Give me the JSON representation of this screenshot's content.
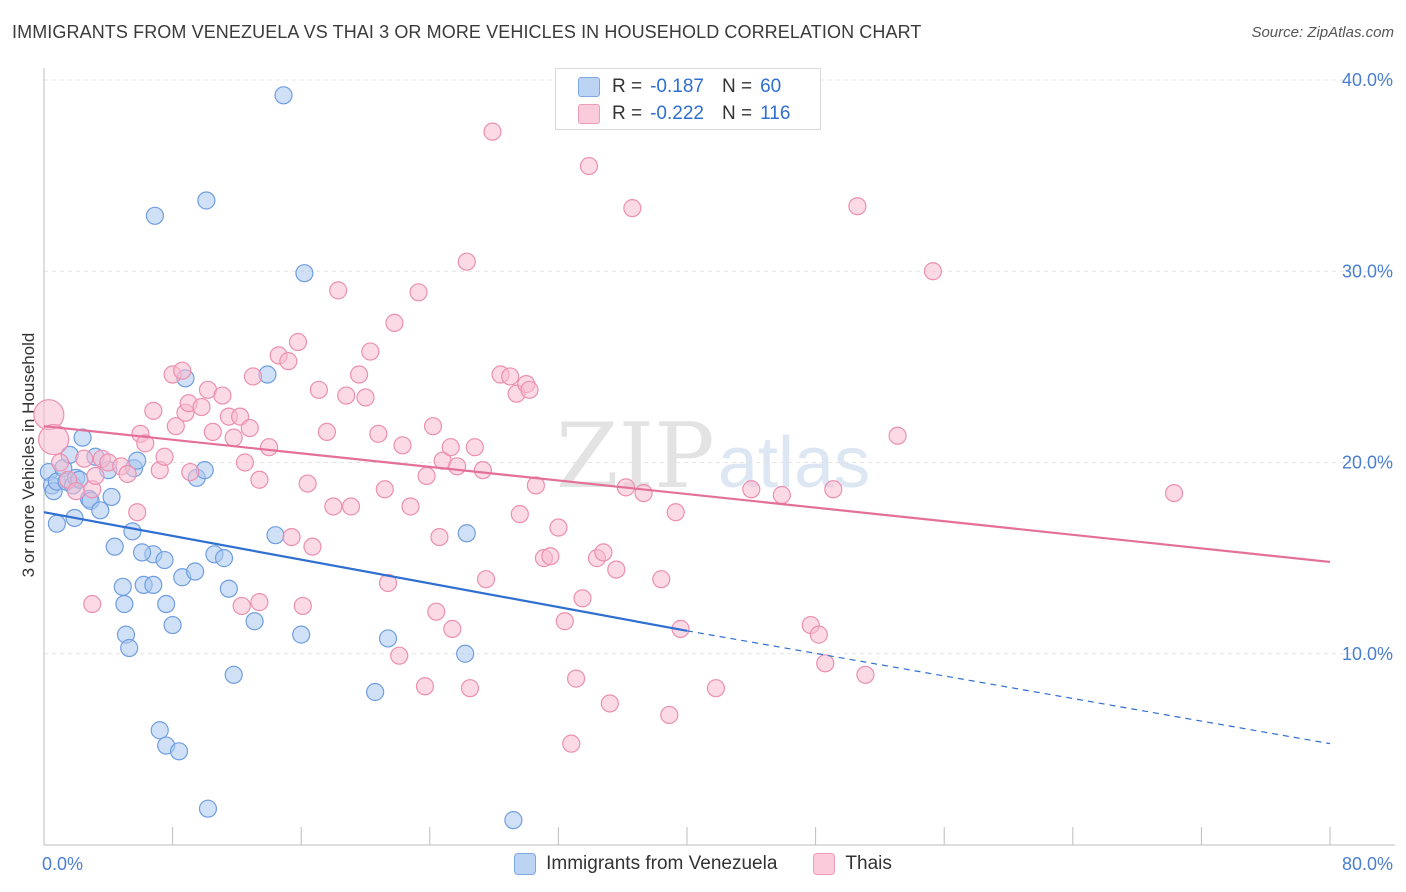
{
  "title": "IMMIGRANTS FROM VENEZUELA VS THAI 3 OR MORE VEHICLES IN HOUSEHOLD CORRELATION CHART",
  "source": "Source: ZipAtlas.com",
  "watermark": {
    "zip": "ZIP",
    "atlas": "atlas"
  },
  "colors": {
    "blue_fill": "#a9c8f0",
    "blue_stroke": "#6f9ee0",
    "blue_line": "#2f6fd0",
    "pink_fill": "#f7bcd0",
    "pink_stroke": "#ec8fb0",
    "pink_line": "#e46f98",
    "tick_text": "#4a7ed0"
  },
  "legend_top": [
    {
      "r_label": "R =",
      "r_value": "-0.187",
      "n_label": "N =",
      "n_value": "60"
    },
    {
      "r_label": "R =",
      "r_value": "-0.222",
      "n_label": "N =",
      "n_value": "116"
    }
  ],
  "legend_bottom": [
    "Immigrants from Venezuela",
    "Thais"
  ],
  "chart_data": {
    "type": "scatter",
    "title": "IMMIGRANTS FROM VENEZUELA VS THAI 3 OR MORE VEHICLES IN HOUSEHOLD CORRELATION CHART",
    "xlabel": "",
    "ylabel": "3 or more Vehicles in Household",
    "xlim": [
      0,
      80
    ],
    "ylim": [
      0,
      40
    ],
    "x_tick_labels": [
      "0.0%",
      "80.0%"
    ],
    "y_ticks": [
      10,
      20,
      30,
      40
    ],
    "y_tick_labels": [
      "10.0%",
      "20.0%",
      "30.0%",
      "40.0%"
    ],
    "grid": true,
    "series": [
      {
        "name": "Immigrants from Venezuela",
        "color": "#6f9ee0",
        "trend": {
          "x0": 0,
          "y0": 17.4,
          "x1": 40,
          "y1": 11.2,
          "dashed_to_x": 80,
          "dashed_to_y": 5.3
        },
        "points": [
          [
            0.3,
            19.5
          ],
          [
            0.5,
            18.8
          ],
          [
            0.6,
            18.5
          ],
          [
            0.8,
            19.0
          ],
          [
            1.2,
            19.7
          ],
          [
            1.4,
            19.0
          ],
          [
            1.6,
            20.4
          ],
          [
            1.8,
            18.8
          ],
          [
            2.0,
            19.2
          ],
          [
            2.2,
            19.1
          ],
          [
            0.8,
            16.8
          ],
          [
            1.9,
            17.1
          ],
          [
            2.4,
            21.3
          ],
          [
            2.8,
            18.1
          ],
          [
            2.9,
            18.0
          ],
          [
            3.2,
            20.3
          ],
          [
            3.5,
            17.5
          ],
          [
            4.0,
            19.6
          ],
          [
            4.2,
            18.2
          ],
          [
            5.6,
            19.7
          ],
          [
            5.8,
            20.1
          ],
          [
            4.4,
            15.6
          ],
          [
            5.5,
            16.4
          ],
          [
            6.8,
            15.2
          ],
          [
            6.1,
            15.3
          ],
          [
            4.9,
            13.5
          ],
          [
            6.2,
            13.6
          ],
          [
            6.8,
            13.6
          ],
          [
            7.5,
            14.9
          ],
          [
            8.6,
            14.0
          ],
          [
            9.4,
            14.3
          ],
          [
            10.6,
            15.2
          ],
          [
            11.2,
            15.0
          ],
          [
            11.5,
            13.4
          ],
          [
            5.0,
            12.6
          ],
          [
            5.1,
            11.0
          ],
          [
            5.3,
            10.3
          ],
          [
            7.6,
            12.6
          ],
          [
            8.0,
            11.5
          ],
          [
            9.5,
            19.2
          ],
          [
            10.0,
            19.6
          ],
          [
            11.8,
            8.9
          ],
          [
            13.1,
            11.7
          ],
          [
            14.4,
            16.2
          ],
          [
            16.0,
            11.0
          ],
          [
            20.6,
            8.0
          ],
          [
            21.4,
            10.8
          ],
          [
            26.3,
            16.3
          ],
          [
            26.2,
            10.0
          ],
          [
            8.8,
            24.4
          ],
          [
            6.9,
            32.9
          ],
          [
            10.1,
            33.7
          ],
          [
            14.9,
            39.2
          ],
          [
            16.2,
            29.9
          ],
          [
            13.9,
            24.6
          ],
          [
            7.2,
            6.0
          ],
          [
            7.6,
            5.2
          ],
          [
            8.4,
            4.9
          ],
          [
            10.2,
            1.9
          ],
          [
            29.2,
            1.3
          ]
        ]
      },
      {
        "name": "Thais",
        "color": "#ec8fb0",
        "trend": {
          "x0": 0,
          "y0": 21.9,
          "x1": 80,
          "y1": 14.8
        },
        "points": [
          [
            0.3,
            22.5
          ],
          [
            0.6,
            21.2
          ],
          [
            1.0,
            20.0
          ],
          [
            1.5,
            19.1
          ],
          [
            2.0,
            18.5
          ],
          [
            2.5,
            20.2
          ],
          [
            3.0,
            18.6
          ],
          [
            3.2,
            19.3
          ],
          [
            3.6,
            20.2
          ],
          [
            4.0,
            20.0
          ],
          [
            4.8,
            19.8
          ],
          [
            5.2,
            19.4
          ],
          [
            5.8,
            17.4
          ],
          [
            6.0,
            21.5
          ],
          [
            6.3,
            21.0
          ],
          [
            6.8,
            22.7
          ],
          [
            7.2,
            19.6
          ],
          [
            7.5,
            20.3
          ],
          [
            8.0,
            24.6
          ],
          [
            8.2,
            21.9
          ],
          [
            8.6,
            24.8
          ],
          [
            8.8,
            22.6
          ],
          [
            9.0,
            23.1
          ],
          [
            9.8,
            22.9
          ],
          [
            10.2,
            23.8
          ],
          [
            10.5,
            21.6
          ],
          [
            11.1,
            23.5
          ],
          [
            11.5,
            22.4
          ],
          [
            11.8,
            21.3
          ],
          [
            12.2,
            22.4
          ],
          [
            12.5,
            20.0
          ],
          [
            13.0,
            24.5
          ],
          [
            13.4,
            19.1
          ],
          [
            14.0,
            20.8
          ],
          [
            14.6,
            25.6
          ],
          [
            15.2,
            25.3
          ],
          [
            15.8,
            26.3
          ],
          [
            16.4,
            18.9
          ],
          [
            16.7,
            15.6
          ],
          [
            17.1,
            23.8
          ],
          [
            17.6,
            21.6
          ],
          [
            18.0,
            17.7
          ],
          [
            18.3,
            29.0
          ],
          [
            18.8,
            23.5
          ],
          [
            19.1,
            17.7
          ],
          [
            19.6,
            24.6
          ],
          [
            20.0,
            23.4
          ],
          [
            20.3,
            25.8
          ],
          [
            20.8,
            21.5
          ],
          [
            21.2,
            18.6
          ],
          [
            21.8,
            27.3
          ],
          [
            22.3,
            20.9
          ],
          [
            22.8,
            17.7
          ],
          [
            23.3,
            28.9
          ],
          [
            23.8,
            19.3
          ],
          [
            24.2,
            21.9
          ],
          [
            24.8,
            20.1
          ],
          [
            25.3,
            20.8
          ],
          [
            25.7,
            19.8
          ],
          [
            26.3,
            30.5
          ],
          [
            26.8,
            20.8
          ],
          [
            27.3,
            19.6
          ],
          [
            27.9,
            37.3
          ],
          [
            28.4,
            24.6
          ],
          [
            29.0,
            24.5
          ],
          [
            29.4,
            23.6
          ],
          [
            30.0,
            24.1
          ],
          [
            30.2,
            23.8
          ],
          [
            30.6,
            18.8
          ],
          [
            31.1,
            15.0
          ],
          [
            31.5,
            15.1
          ],
          [
            32.0,
            16.6
          ],
          [
            32.4,
            11.7
          ],
          [
            32.8,
            5.3
          ],
          [
            33.1,
            8.7
          ],
          [
            33.5,
            12.9
          ],
          [
            33.9,
            35.5
          ],
          [
            34.4,
            15.0
          ],
          [
            34.8,
            15.3
          ],
          [
            35.2,
            7.4
          ],
          [
            35.6,
            14.4
          ],
          [
            36.2,
            18.7
          ],
          [
            36.6,
            33.3
          ],
          [
            37.3,
            18.4
          ],
          [
            38.4,
            13.9
          ],
          [
            38.9,
            6.8
          ],
          [
            39.3,
            17.4
          ],
          [
            39.6,
            11.3
          ],
          [
            41.8,
            8.2
          ],
          [
            44.0,
            18.6
          ],
          [
            45.9,
            18.3
          ],
          [
            47.7,
            11.5
          ],
          [
            48.2,
            11.0
          ],
          [
            48.6,
            9.5
          ],
          [
            49.1,
            18.6
          ],
          [
            50.6,
            33.4
          ],
          [
            51.1,
            8.9
          ],
          [
            53.1,
            21.4
          ],
          [
            55.3,
            30.0
          ],
          [
            70.3,
            18.4
          ],
          [
            9.1,
            19.5
          ],
          [
            12.8,
            21.8
          ],
          [
            15.4,
            16.1
          ],
          [
            16.1,
            12.5
          ],
          [
            21.4,
            13.7
          ],
          [
            22.1,
            9.9
          ],
          [
            23.7,
            8.3
          ],
          [
            24.6,
            16.1
          ],
          [
            24.4,
            12.2
          ],
          [
            25.4,
            11.3
          ],
          [
            26.5,
            8.2
          ],
          [
            27.5,
            13.9
          ],
          [
            29.6,
            17.3
          ],
          [
            3.0,
            12.6
          ],
          [
            12.3,
            12.5
          ],
          [
            13.4,
            12.7
          ]
        ]
      }
    ]
  }
}
